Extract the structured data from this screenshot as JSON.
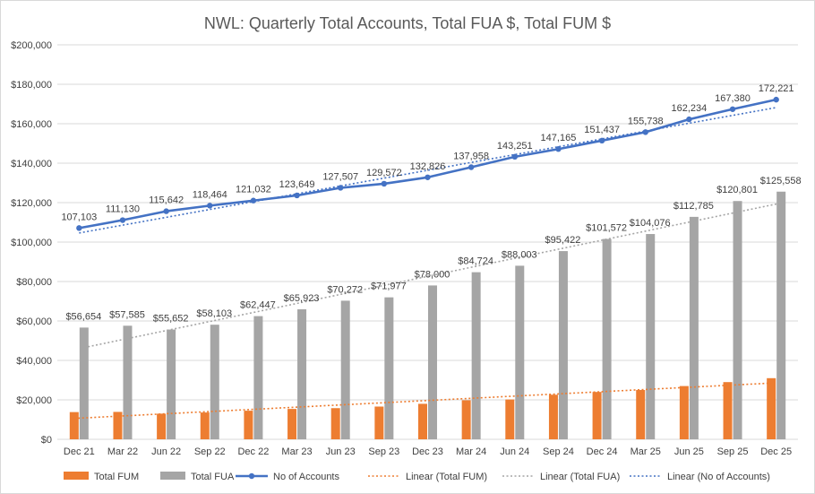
{
  "chart_data": {
    "type": "bar",
    "title": "NWL: Quarterly Total Accounts, Total FUA $, Total FUM $",
    "categories": [
      "Dec 21",
      "Mar 22",
      "Jun 22",
      "Sep 22",
      "Dec 22",
      "Mar 23",
      "Jun 23",
      "Sep 23",
      "Dec 23",
      "Mar 24",
      "Jun 24",
      "Sep 24",
      "Dec 24",
      "Mar 25",
      "Jun 25",
      "Sep 25",
      "Dec 25"
    ],
    "ylim": [
      0,
      200000
    ],
    "yticks": [
      0,
      20000,
      40000,
      60000,
      80000,
      100000,
      120000,
      140000,
      160000,
      180000,
      200000
    ],
    "ytick_labels": [
      "$0",
      "$20,000",
      "$40,000",
      "$60,000",
      "$80,000",
      "$100,000",
      "$120,000",
      "$140,000",
      "$160,000",
      "$180,000",
      "$200,000"
    ],
    "grid": true,
    "legend_position": "bottom",
    "series": [
      {
        "name": "Total FUM",
        "type": "bar",
        "color": "#ed7d31",
        "values": [
          13800,
          13900,
          13000,
          13600,
          14500,
          15400,
          15800,
          16600,
          18000,
          19800,
          20200,
          22600,
          24000,
          25000,
          27000,
          29000,
          31000
        ]
      },
      {
        "name": "Total FUA",
        "type": "bar",
        "color": "#a5a5a5",
        "values": [
          56654,
          57585,
          55652,
          58103,
          62447,
          65923,
          70272,
          71977,
          78000,
          84724,
          88003,
          95422,
          101572,
          104076,
          112785,
          120801,
          125558
        ],
        "labels": [
          "$56,654",
          "$57,585",
          "$55,652",
          "$58,103",
          "$62,447",
          "$65,923",
          "$70,272",
          "$71,977",
          "$78,000",
          "$84,724",
          "$88,003",
          "$95,422",
          "$101,572",
          "$104,076",
          "$112,785",
          "$120,801",
          "$125,558"
        ]
      },
      {
        "name": "No of Accounts",
        "type": "line",
        "color": "#4472c4",
        "values": [
          107103,
          111130,
          115642,
          118464,
          121032,
          123649,
          127507,
          129572,
          132826,
          137958,
          143251,
          147165,
          151437,
          155738,
          162234,
          167380,
          172221
        ],
        "labels": [
          "107,103",
          "111,130",
          "115,642",
          "118,464",
          "121,032",
          "123,649",
          "127,507",
          "129,572",
          "132,826",
          "137,958",
          "143,251",
          "147,165",
          "151,437",
          "155,738",
          "162,234",
          "167,380",
          "172,221"
        ]
      }
    ],
    "trendlines": [
      {
        "name": "Linear (Total FUM)",
        "of": "Total FUM",
        "color": "#ed7d31",
        "start": 10600,
        "end": 28500
      },
      {
        "name": "Linear (Total FUA)",
        "of": "Total FUA",
        "color": "#a5a5a5",
        "start": 46500,
        "end": 119800
      },
      {
        "name": "Linear (No of Accounts)",
        "of": "No of Accounts",
        "color": "#4472c4",
        "start": 104600,
        "end": 168200
      }
    ],
    "legend": [
      "Total FUM",
      "Total FUA",
      "No of Accounts",
      "Linear (Total FUM)",
      "Linear (Total FUA)",
      "Linear (No of Accounts)"
    ]
  }
}
